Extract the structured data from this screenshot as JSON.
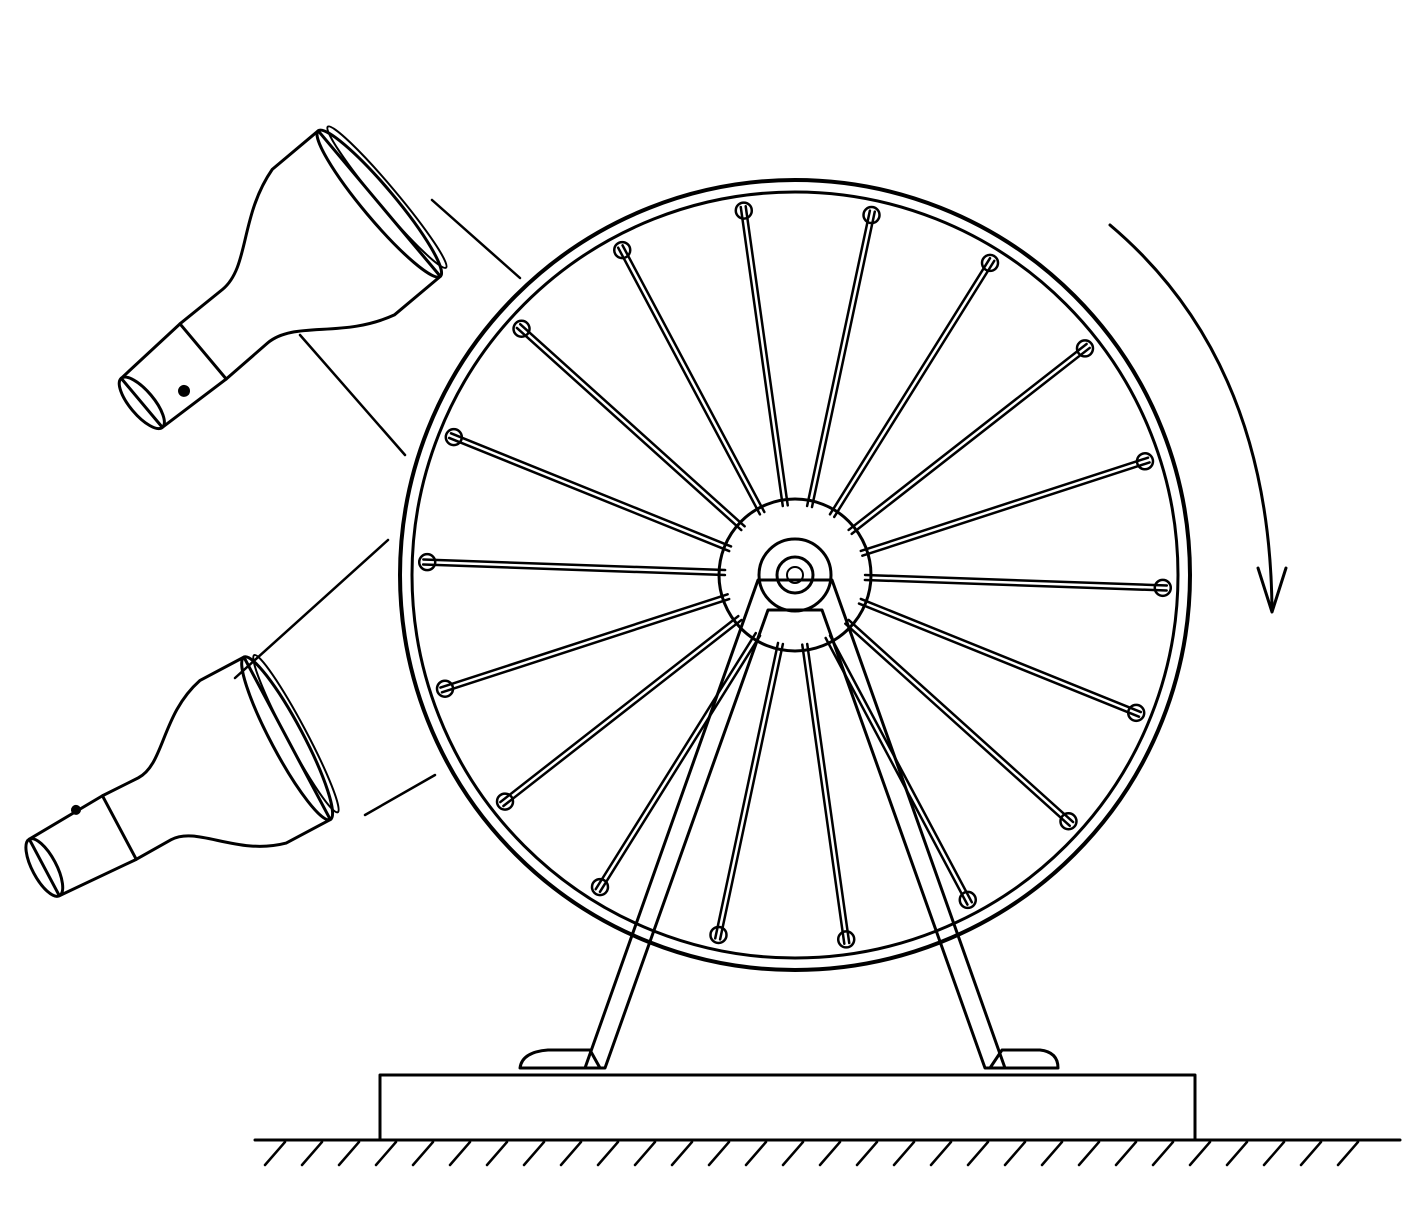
{
  "figure": {
    "caption": "",
    "colors": {
      "ink": "#000000",
      "paper": "#ffffff"
    },
    "wheel": {
      "spoke_count": 18,
      "rotation": "clockwise"
    },
    "lamps": {
      "count": 2
    }
  }
}
